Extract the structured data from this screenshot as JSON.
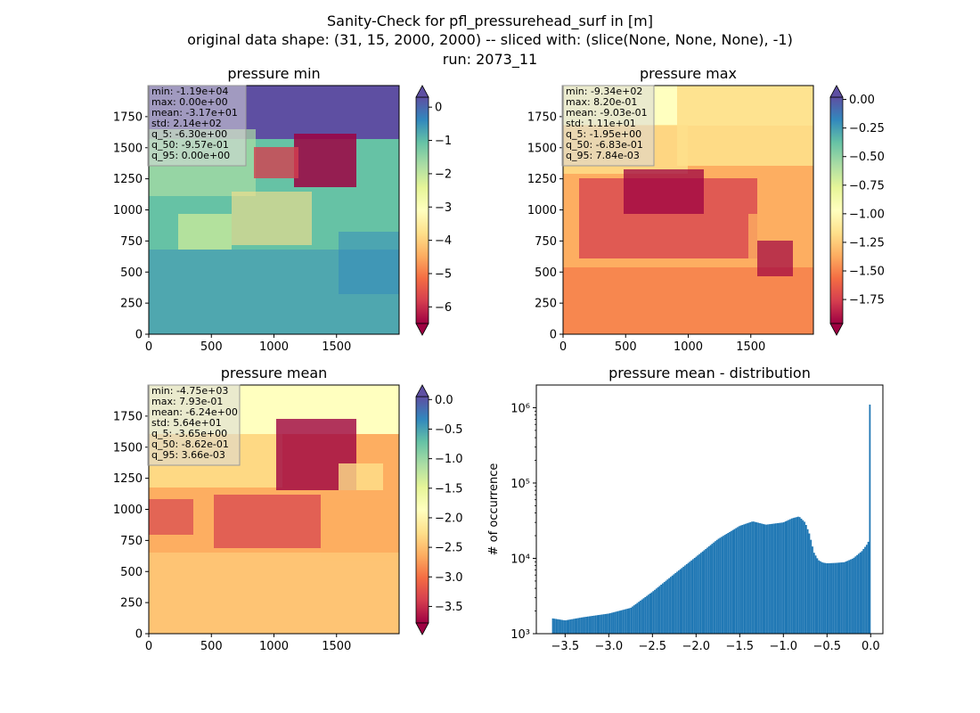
{
  "figure": {
    "title_lines": [
      "Sanity-Check for pfl_pressurehead_surf in [m]",
      "original data shape: (31, 15, 2000, 2000) -- sliced with: (slice(None, None, None), -1)",
      "run: 2073_11"
    ]
  },
  "chart_data": [
    {
      "type": "heatmap",
      "title": "pressure min",
      "x_ticks": [
        "0",
        "500",
        "1000",
        "1500"
      ],
      "y_ticks": [
        "0",
        "250",
        "500",
        "750",
        "1000",
        "1250",
        "1500",
        "1750"
      ],
      "xlim": [
        0,
        2000
      ],
      "ylim": [
        0,
        2000
      ],
      "colormap": "Spectral",
      "colorbar": {
        "vmin": -6.5,
        "vmax": 0.3,
        "ticks": [
          "0",
          "−1",
          "−2",
          "−3",
          "−4",
          "−5",
          "−6"
        ],
        "tick_values": [
          0,
          -1,
          -2,
          -3,
          -4,
          -5,
          -6
        ],
        "extend": "both"
      },
      "stats": [
        "min: -1.19e+04",
        "max: 0.00e+00",
        "mean: -3.17e+01",
        "std: 2.14e+02",
        "q_5: -6.30e+00",
        "q_50: -9.57e-01",
        "q_95: 0.00e+00"
      ]
    },
    {
      "type": "heatmap",
      "title": "pressure max",
      "x_ticks": [
        "0",
        "500",
        "1000",
        "1500"
      ],
      "y_ticks": [
        "0",
        "250",
        "500",
        "750",
        "1000",
        "1250",
        "1500",
        "1750"
      ],
      "xlim": [
        0,
        2000
      ],
      "ylim": [
        0,
        2000
      ],
      "colormap": "Spectral",
      "colorbar": {
        "vmin": -1.96,
        "vmax": 0.02,
        "ticks": [
          "0.00",
          "−0.25",
          "−0.50",
          "−0.75",
          "−1.00",
          "−1.25",
          "−1.50",
          "−1.75"
        ],
        "tick_values": [
          0,
          -0.25,
          -0.5,
          -0.75,
          -1.0,
          -1.25,
          -1.5,
          -1.75
        ],
        "extend": "both"
      },
      "stats": [
        "min: -9.34e+02",
        "max: 8.20e-01",
        "mean: -9.03e-01",
        "std: 1.11e+01",
        "q_5: -1.95e+00",
        "q_50: -6.83e-01",
        "q_95: 7.84e-03"
      ]
    },
    {
      "type": "heatmap",
      "title": "pressure mean",
      "x_ticks": [
        "0",
        "500",
        "1000",
        "1500"
      ],
      "y_ticks": [
        "0",
        "250",
        "500",
        "750",
        "1000",
        "1250",
        "1500",
        "1750"
      ],
      "xlim": [
        0,
        2000
      ],
      "ylim": [
        0,
        2000
      ],
      "colormap": "Spectral",
      "colorbar": {
        "vmin": -3.78,
        "vmax": 0.05,
        "ticks": [
          "0.0",
          "−0.5",
          "−1.0",
          "−1.5",
          "−2.0",
          "−2.5",
          "−3.0",
          "−3.5"
        ],
        "tick_values": [
          0,
          -0.5,
          -1.0,
          -1.5,
          -2.0,
          -2.5,
          -3.0,
          -3.5
        ],
        "extend": "both"
      },
      "stats": [
        "min: -4.75e+03",
        "max: 7.93e-01",
        "mean: -6.24e+00",
        "std: 5.64e+01",
        "q_5: -3.65e+00",
        "q_50: -8.62e-01",
        "q_95: 3.66e-03"
      ]
    },
    {
      "type": "bar",
      "title": "pressure mean - distribution",
      "ylabel": "# of occurrence",
      "y_scale": "log",
      "xlim": [
        -3.83,
        0.14
      ],
      "ylim": [
        1000,
        2000000
      ],
      "x_ticks": [
        "−3.5",
        "−3.0",
        "−2.5",
        "−2.0",
        "−1.5",
        "−1.0",
        "−0.5",
        "0.0"
      ],
      "x_tick_values": [
        -3.5,
        -3.0,
        -2.5,
        -2.0,
        -1.5,
        -1.0,
        -0.5,
        0.0
      ],
      "y_ticks": [
        "10³",
        "10⁴",
        "10⁵",
        "10⁶"
      ],
      "y_tick_values": [
        1000,
        10000,
        100000,
        1000000
      ],
      "bar_color": "#1f77b4",
      "bin_edges_range": [
        -3.65,
        0.0
      ],
      "x": [
        -3.65,
        -3.5,
        -3.3,
        -3.0,
        -2.75,
        -2.5,
        -2.25,
        -2.0,
        -1.75,
        -1.5,
        -1.35,
        -1.2,
        -1.0,
        -0.9,
        -0.82,
        -0.75,
        -0.7,
        -0.65,
        -0.6,
        -0.55,
        -0.5,
        -0.4,
        -0.3,
        -0.2,
        -0.1,
        -0.03,
        -0.01,
        0.0
      ],
      "values": [
        1600,
        1500,
        1650,
        1850,
        2200,
        3600,
        6200,
        10500,
        18000,
        27000,
        31000,
        28000,
        30000,
        34000,
        36000,
        30000,
        21000,
        12000,
        9500,
        8800,
        8600,
        8700,
        8900,
        10000,
        12500,
        16000,
        21000,
        1100000
      ]
    }
  ]
}
